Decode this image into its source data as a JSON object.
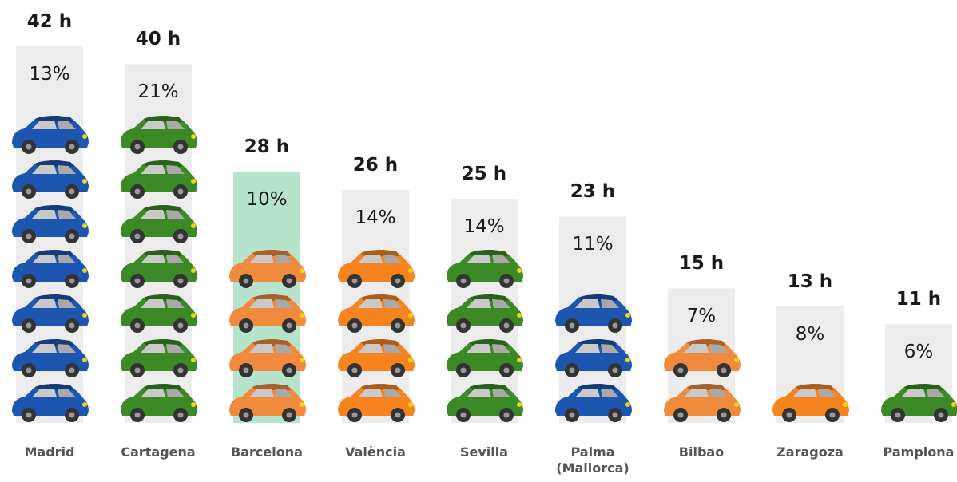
{
  "chart_data": {
    "type": "bar",
    "categories": [
      "Madrid",
      "Cartagena",
      "Barcelona",
      "València",
      "Sevilla",
      "Palma (Mallorca)",
      "Bilbao",
      "Zaragoza",
      "Pamplona"
    ],
    "values": [
      42,
      40,
      28,
      26,
      25,
      23,
      15,
      13,
      11
    ],
    "value_labels": [
      "42 h",
      "40 h",
      "28 h",
      "26 h",
      "25 h",
      "23 h",
      "15 h",
      "13 h",
      "11 h"
    ],
    "shares": [
      13,
      21,
      10,
      14,
      14,
      11,
      7,
      8,
      6
    ],
    "share_labels": [
      "13%",
      "21%",
      "10%",
      "14%",
      "14%",
      "11%",
      "7%",
      "8%",
      "6%"
    ],
    "icon_counts": [
      7,
      7,
      4,
      4,
      4,
      3,
      2,
      1,
      1
    ],
    "icon_colors": [
      "#1d56b0",
      "#3b8a25",
      "#f08a3c",
      "#f5841f",
      "#3b8a25",
      "#1d56b0",
      "#f08a3c",
      "#f5841f",
      "#3b8a25"
    ],
    "bar_colors": [
      "#ececec",
      "#ececec",
      "#b5e3cc",
      "#ececec",
      "#ececec",
      "#ececec",
      "#ececec",
      "#ececec",
      "#ececec"
    ]
  }
}
